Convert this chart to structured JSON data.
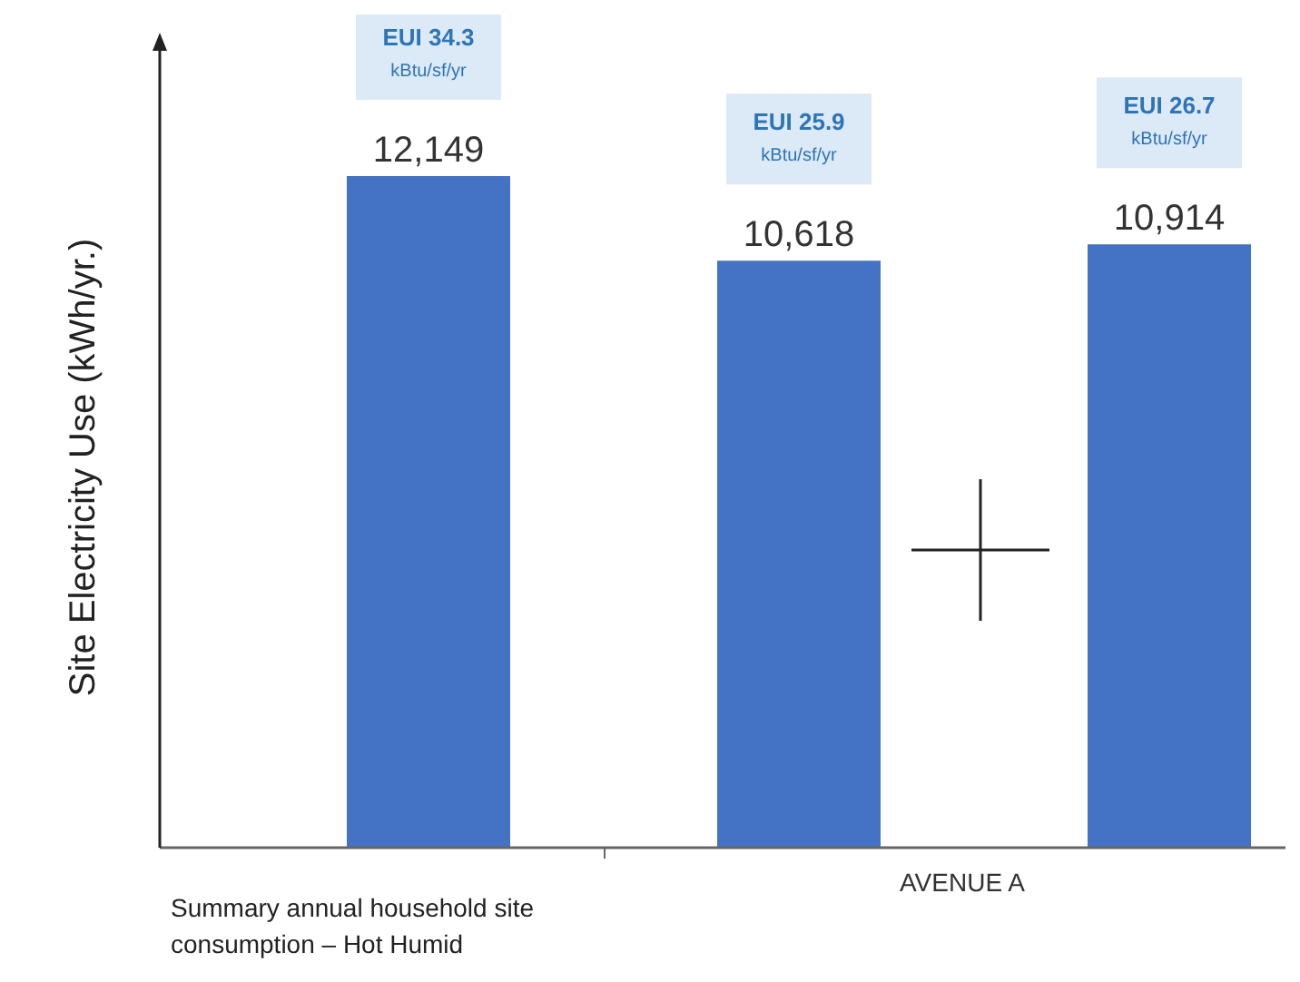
{
  "chart_data": {
    "type": "bar",
    "ylabel": "Site Electricity Use (kWh/yr.)",
    "xlabel": "AVENUE A",
    "categories": [
      null,
      null,
      null
    ],
    "values": [
      12149,
      10618,
      10914
    ],
    "value_labels": [
      "12,149",
      "10,618",
      "10,914"
    ],
    "color": "#4472c4",
    "annotations": [
      "EUI 34.3\nkBtu/sf/yr",
      "EUI 25.9\nkBtu/sf/yr",
      "EUI 26.7\nkBtu/sf/yr",
      "Summary annual household site\nconsumption – Hot Humid"
    ],
    "data_labels": false
  }
}
